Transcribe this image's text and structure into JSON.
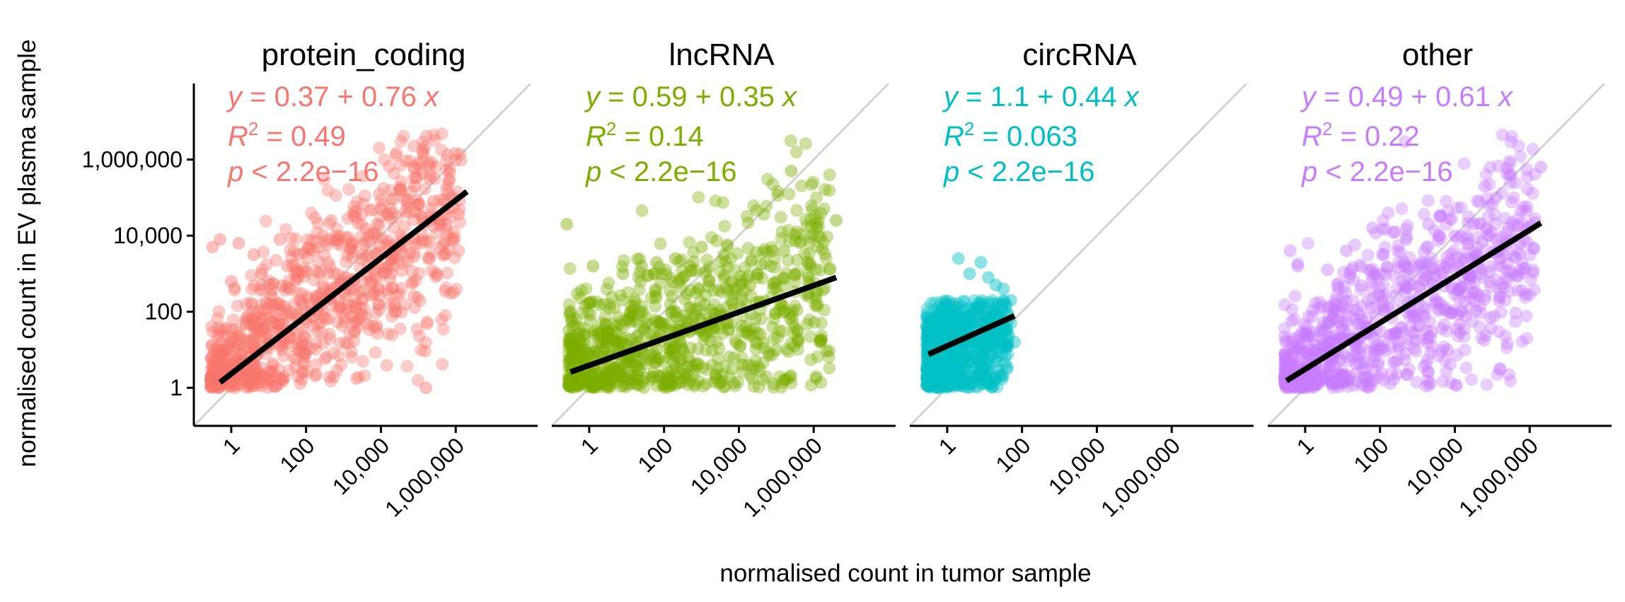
{
  "chart_data": {
    "type": "scatter",
    "x_scale": "log10",
    "y_scale": "log10",
    "xlabel": "normalised count in tumor sample",
    "ylabel": "normalised count in EV plasma sample",
    "x_ticks": [
      1,
      100,
      10000,
      1000000
    ],
    "x_tick_labels": [
      "1",
      "100",
      "10,000",
      "1,000,000"
    ],
    "y_ticks": [
      1,
      100,
      10000,
      1000000
    ],
    "y_tick_labels": [
      "1",
      "100",
      "10,000",
      "1,000,000"
    ],
    "xlim": [
      0.1,
      100000000
    ],
    "ylim": [
      0.1,
      100000000
    ],
    "reference_line": "y = x",
    "reference_color": "#d3d3d3",
    "fit_color": "#000000",
    "grid": false,
    "legend": "none",
    "facets": [
      {
        "name": "protein_coding",
        "color": "#F8766D",
        "intercept": 0.37,
        "slope": 0.76,
        "eq_intercept": "0.37",
        "eq_slope": "0.76",
        "r2": "0.49",
        "p": "2.2e−16",
        "x_max_log": 6.3,
        "fit_x_log": [
          -0.3,
          6.3
        ],
        "points": [
          [
            -0.5,
            3.7
          ],
          [
            -0.3,
            3.9
          ],
          [
            0.2,
            3.8
          ],
          [
            0.6,
            3.5
          ],
          [
            1.3,
            3.9
          ],
          [
            1.8,
            3.5
          ],
          [
            2.6,
            3.9
          ],
          [
            3.2,
            3.8
          ],
          [
            4.5,
            5.2
          ],
          [
            5.0,
            5.9
          ],
          [
            5.3,
            5.5
          ],
          [
            5.9,
            3.9
          ],
          [
            5.2,
            0.0
          ],
          [
            0.0,
            2.8
          ],
          [
            0.8,
            3.0
          ],
          [
            4.0,
            4.7
          ],
          [
            4.7,
            4.9
          ],
          [
            4.9,
            5.3
          ],
          [
            3.9,
            4.3
          ],
          [
            4.3,
            4.6
          ],
          [
            5.4,
            4.9
          ],
          [
            5.6,
            4.4
          ],
          [
            5.1,
            4.5
          ],
          [
            5.3,
            3.4
          ],
          [
            2.2,
            3.6
          ],
          [
            1.5,
            3.2
          ]
        ]
      },
      {
        "name": "lncRNA",
        "color": "#7CAE00",
        "intercept": 0.59,
        "slope": 0.35,
        "eq_intercept": "0.59",
        "eq_slope": "0.35",
        "r2": "0.14",
        "p": "2.2e−16",
        "x_max_log": 6.6,
        "fit_x_log": [
          -0.5,
          6.6
        ],
        "points": [
          [
            -0.6,
            4.3
          ],
          [
            0.1,
            3.2
          ],
          [
            0.9,
            3.0
          ],
          [
            1.4,
            3.2
          ],
          [
            1.8,
            3.3
          ],
          [
            2.3,
            3.4
          ],
          [
            2.7,
            3.2
          ],
          [
            3.0,
            3.7
          ],
          [
            3.6,
            3.5
          ],
          [
            4.5,
            3.0
          ],
          [
            5.0,
            2.8
          ],
          [
            4.9,
            3.6
          ],
          [
            5.4,
            5.7
          ],
          [
            5.2,
            3.6
          ],
          [
            6.6,
            4.4
          ],
          [
            4.3,
            2.7
          ],
          [
            3.8,
            2.3
          ],
          [
            4.1,
            0.6
          ],
          [
            5.0,
            1.0
          ],
          [
            3.2,
            2.8
          ],
          [
            2.5,
            2.9
          ]
        ]
      },
      {
        "name": "circRNA",
        "color": "#00BFC4",
        "intercept": 1.1,
        "slope": 0.44,
        "eq_intercept": "1.1",
        "eq_slope": "0.44",
        "r2": "0.063",
        "p": "2.2e−16",
        "x_max_log": 1.8,
        "fit_x_log": [
          -0.5,
          1.8
        ],
        "points": [
          [
            0.3,
            3.4
          ],
          [
            0.6,
            3.0
          ],
          [
            0.9,
            3.3
          ],
          [
            1.1,
            2.9
          ],
          [
            1.5,
            2.6
          ],
          [
            1.7,
            2.3
          ],
          [
            1.8,
            1.2
          ],
          [
            1.6,
            0.5
          ],
          [
            1.7,
            1.7
          ],
          [
            1.3,
            2.7
          ]
        ]
      },
      {
        "name": "other",
        "color": "#C77CFF",
        "intercept": 0.49,
        "slope": 0.61,
        "eq_intercept": "0.49",
        "eq_slope": "0.61",
        "r2": "0.22",
        "p": "2.2e−16",
        "x_max_log": 6.3,
        "fit_x_log": [
          -0.5,
          6.3
        ],
        "points": [
          [
            -0.4,
            3.6
          ],
          [
            -0.2,
            3.2
          ],
          [
            0.6,
            3.1
          ],
          [
            1.1,
            3.6
          ],
          [
            1.8,
            4.2
          ],
          [
            2.4,
            4.1
          ],
          [
            2.7,
            3.9
          ],
          [
            3.3,
            4.3
          ],
          [
            3.6,
            4.5
          ],
          [
            4.0,
            4.0
          ],
          [
            4.5,
            4.3
          ],
          [
            4.8,
            5.3
          ],
          [
            5.1,
            5.0
          ],
          [
            5.5,
            5.6
          ],
          [
            5.2,
            3.4
          ],
          [
            4.7,
            3.0
          ],
          [
            4.1,
            2.6
          ],
          [
            3.8,
            1.0
          ],
          [
            4.2,
            2.0
          ],
          [
            6.3,
            5.8
          ],
          [
            2.1,
            3.5
          ]
        ]
      }
    ]
  }
}
